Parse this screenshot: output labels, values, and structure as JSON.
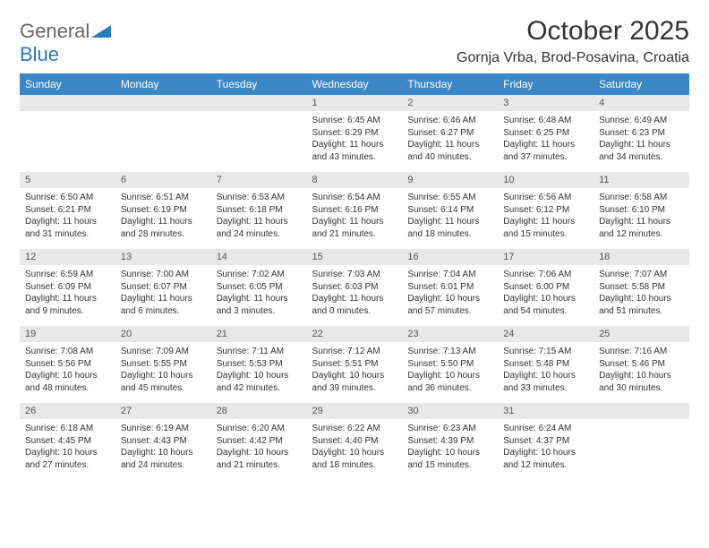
{
  "brand": {
    "word1": "General",
    "word2": "Blue"
  },
  "title": "October 2025",
  "location": "Gornja Vrba, Brod-Posavina, Croatia",
  "colors": {
    "header_bg": "#3b86c6",
    "header_text": "#ffffff",
    "daynum_bg": "#e8e8e8",
    "daynum_text": "#555555",
    "body_text": "#333333",
    "logo_gray": "#666666",
    "logo_blue": "#2b7bbd",
    "page_bg": "#ffffff"
  },
  "fonts": {
    "title_size_pt": 30,
    "location_size_pt": 16,
    "th_size_pt": 12,
    "daynum_size_pt": 11,
    "cell_size_pt": 10
  },
  "day_headers": [
    "Sunday",
    "Monday",
    "Tuesday",
    "Wednesday",
    "Thursday",
    "Friday",
    "Saturday"
  ],
  "weeks": [
    [
      {
        "n": "",
        "sr": "",
        "ss": "",
        "dl": ""
      },
      {
        "n": "",
        "sr": "",
        "ss": "",
        "dl": ""
      },
      {
        "n": "",
        "sr": "",
        "ss": "",
        "dl": ""
      },
      {
        "n": "1",
        "sr": "Sunrise: 6:45 AM",
        "ss": "Sunset: 6:29 PM",
        "dl": "Daylight: 11 hours and 43 minutes."
      },
      {
        "n": "2",
        "sr": "Sunrise: 6:46 AM",
        "ss": "Sunset: 6:27 PM",
        "dl": "Daylight: 11 hours and 40 minutes."
      },
      {
        "n": "3",
        "sr": "Sunrise: 6:48 AM",
        "ss": "Sunset: 6:25 PM",
        "dl": "Daylight: 11 hours and 37 minutes."
      },
      {
        "n": "4",
        "sr": "Sunrise: 6:49 AM",
        "ss": "Sunset: 6:23 PM",
        "dl": "Daylight: 11 hours and 34 minutes."
      }
    ],
    [
      {
        "n": "5",
        "sr": "Sunrise: 6:50 AM",
        "ss": "Sunset: 6:21 PM",
        "dl": "Daylight: 11 hours and 31 minutes."
      },
      {
        "n": "6",
        "sr": "Sunrise: 6:51 AM",
        "ss": "Sunset: 6:19 PM",
        "dl": "Daylight: 11 hours and 28 minutes."
      },
      {
        "n": "7",
        "sr": "Sunrise: 6:53 AM",
        "ss": "Sunset: 6:18 PM",
        "dl": "Daylight: 11 hours and 24 minutes."
      },
      {
        "n": "8",
        "sr": "Sunrise: 6:54 AM",
        "ss": "Sunset: 6:16 PM",
        "dl": "Daylight: 11 hours and 21 minutes."
      },
      {
        "n": "9",
        "sr": "Sunrise: 6:55 AM",
        "ss": "Sunset: 6:14 PM",
        "dl": "Daylight: 11 hours and 18 minutes."
      },
      {
        "n": "10",
        "sr": "Sunrise: 6:56 AM",
        "ss": "Sunset: 6:12 PM",
        "dl": "Daylight: 11 hours and 15 minutes."
      },
      {
        "n": "11",
        "sr": "Sunrise: 6:58 AM",
        "ss": "Sunset: 6:10 PM",
        "dl": "Daylight: 11 hours and 12 minutes."
      }
    ],
    [
      {
        "n": "12",
        "sr": "Sunrise: 6:59 AM",
        "ss": "Sunset: 6:09 PM",
        "dl": "Daylight: 11 hours and 9 minutes."
      },
      {
        "n": "13",
        "sr": "Sunrise: 7:00 AM",
        "ss": "Sunset: 6:07 PM",
        "dl": "Daylight: 11 hours and 6 minutes."
      },
      {
        "n": "14",
        "sr": "Sunrise: 7:02 AM",
        "ss": "Sunset: 6:05 PM",
        "dl": "Daylight: 11 hours and 3 minutes."
      },
      {
        "n": "15",
        "sr": "Sunrise: 7:03 AM",
        "ss": "Sunset: 6:03 PM",
        "dl": "Daylight: 11 hours and 0 minutes."
      },
      {
        "n": "16",
        "sr": "Sunrise: 7:04 AM",
        "ss": "Sunset: 6:01 PM",
        "dl": "Daylight: 10 hours and 57 minutes."
      },
      {
        "n": "17",
        "sr": "Sunrise: 7:06 AM",
        "ss": "Sunset: 6:00 PM",
        "dl": "Daylight: 10 hours and 54 minutes."
      },
      {
        "n": "18",
        "sr": "Sunrise: 7:07 AM",
        "ss": "Sunset: 5:58 PM",
        "dl": "Daylight: 10 hours and 51 minutes."
      }
    ],
    [
      {
        "n": "19",
        "sr": "Sunrise: 7:08 AM",
        "ss": "Sunset: 5:56 PM",
        "dl": "Daylight: 10 hours and 48 minutes."
      },
      {
        "n": "20",
        "sr": "Sunrise: 7:09 AM",
        "ss": "Sunset: 5:55 PM",
        "dl": "Daylight: 10 hours and 45 minutes."
      },
      {
        "n": "21",
        "sr": "Sunrise: 7:11 AM",
        "ss": "Sunset: 5:53 PM",
        "dl": "Daylight: 10 hours and 42 minutes."
      },
      {
        "n": "22",
        "sr": "Sunrise: 7:12 AM",
        "ss": "Sunset: 5:51 PM",
        "dl": "Daylight: 10 hours and 39 minutes."
      },
      {
        "n": "23",
        "sr": "Sunrise: 7:13 AM",
        "ss": "Sunset: 5:50 PM",
        "dl": "Daylight: 10 hours and 36 minutes."
      },
      {
        "n": "24",
        "sr": "Sunrise: 7:15 AM",
        "ss": "Sunset: 5:48 PM",
        "dl": "Daylight: 10 hours and 33 minutes."
      },
      {
        "n": "25",
        "sr": "Sunrise: 7:16 AM",
        "ss": "Sunset: 5:46 PM",
        "dl": "Daylight: 10 hours and 30 minutes."
      }
    ],
    [
      {
        "n": "26",
        "sr": "Sunrise: 6:18 AM",
        "ss": "Sunset: 4:45 PM",
        "dl": "Daylight: 10 hours and 27 minutes."
      },
      {
        "n": "27",
        "sr": "Sunrise: 6:19 AM",
        "ss": "Sunset: 4:43 PM",
        "dl": "Daylight: 10 hours and 24 minutes."
      },
      {
        "n": "28",
        "sr": "Sunrise: 6:20 AM",
        "ss": "Sunset: 4:42 PM",
        "dl": "Daylight: 10 hours and 21 minutes."
      },
      {
        "n": "29",
        "sr": "Sunrise: 6:22 AM",
        "ss": "Sunset: 4:40 PM",
        "dl": "Daylight: 10 hours and 18 minutes."
      },
      {
        "n": "30",
        "sr": "Sunrise: 6:23 AM",
        "ss": "Sunset: 4:39 PM",
        "dl": "Daylight: 10 hours and 15 minutes."
      },
      {
        "n": "31",
        "sr": "Sunrise: 6:24 AM",
        "ss": "Sunset: 4:37 PM",
        "dl": "Daylight: 10 hours and 12 minutes."
      },
      {
        "n": "",
        "sr": "",
        "ss": "",
        "dl": ""
      }
    ]
  ]
}
